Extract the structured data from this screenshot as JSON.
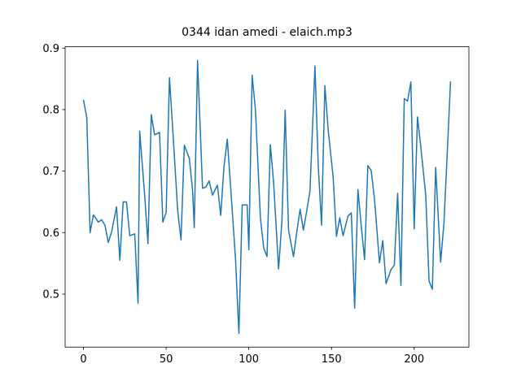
{
  "chart_data": {
    "type": "line",
    "title": "0344 idan amedi - elaich.mp3",
    "xlim": [
      -11.1,
      233.1
    ],
    "ylim": [
      0.4138,
      0.9022
    ],
    "xticks": [
      0,
      50,
      100,
      150,
      200
    ],
    "yticks": [
      0.5,
      0.6,
      0.7,
      0.8,
      0.9
    ],
    "grid": false,
    "series": [
      {
        "name": "signal",
        "color": "#1f77b4",
        "x": [
          0,
          2,
          4,
          6,
          9,
          11,
          13,
          15,
          17,
          20,
          22,
          24,
          26,
          28,
          31,
          33,
          34,
          37,
          39,
          41,
          43,
          46,
          48,
          50,
          52,
          54,
          57,
          59,
          61,
          64,
          66,
          67,
          69,
          72,
          74,
          76,
          78,
          81,
          83,
          85,
          87,
          89,
          92,
          94,
          96,
          99,
          100,
          102,
          104,
          107,
          109,
          111,
          113,
          115,
          118,
          120,
          122,
          124,
          127,
          129,
          131,
          133,
          135,
          137,
          140,
          142,
          144,
          146,
          148,
          151,
          153,
          155,
          157,
          160,
          162,
          164,
          166,
          168,
          170,
          172,
          174,
          176,
          179,
          181,
          183,
          186,
          188,
          190,
          192,
          194,
          196,
          198,
          200,
          202,
          204,
          207,
          209,
          211,
          213,
          216,
          218,
          220,
          222
        ],
        "values": [
          0.816,
          0.787,
          0.6,
          0.629,
          0.617,
          0.621,
          0.612,
          0.584,
          0.601,
          0.642,
          0.555,
          0.65,
          0.65,
          0.595,
          0.598,
          0.485,
          0.765,
          0.661,
          0.582,
          0.792,
          0.759,
          0.763,
          0.617,
          0.633,
          0.852,
          0.767,
          0.635,
          0.588,
          0.742,
          0.721,
          0.668,
          0.608,
          0.88,
          0.672,
          0.674,
          0.684,
          0.661,
          0.677,
          0.628,
          0.708,
          0.752,
          0.674,
          0.555,
          0.436,
          0.645,
          0.645,
          0.572,
          0.856,
          0.8,
          0.624,
          0.575,
          0.561,
          0.743,
          0.681,
          0.541,
          0.618,
          0.799,
          0.605,
          0.561,
          0.601,
          0.638,
          0.604,
          0.635,
          0.668,
          0.871,
          0.708,
          0.612,
          0.839,
          0.767,
          0.69,
          0.594,
          0.624,
          0.595,
          0.627,
          0.632,
          0.477,
          0.67,
          0.611,
          0.556,
          0.709,
          0.701,
          0.655,
          0.551,
          0.587,
          0.517,
          0.54,
          0.547,
          0.664,
          0.514,
          0.818,
          0.814,
          0.845,
          0.606,
          0.788,
          0.74,
          0.661,
          0.521,
          0.508,
          0.706,
          0.552,
          0.615,
          0.729,
          0.846
        ]
      }
    ]
  }
}
